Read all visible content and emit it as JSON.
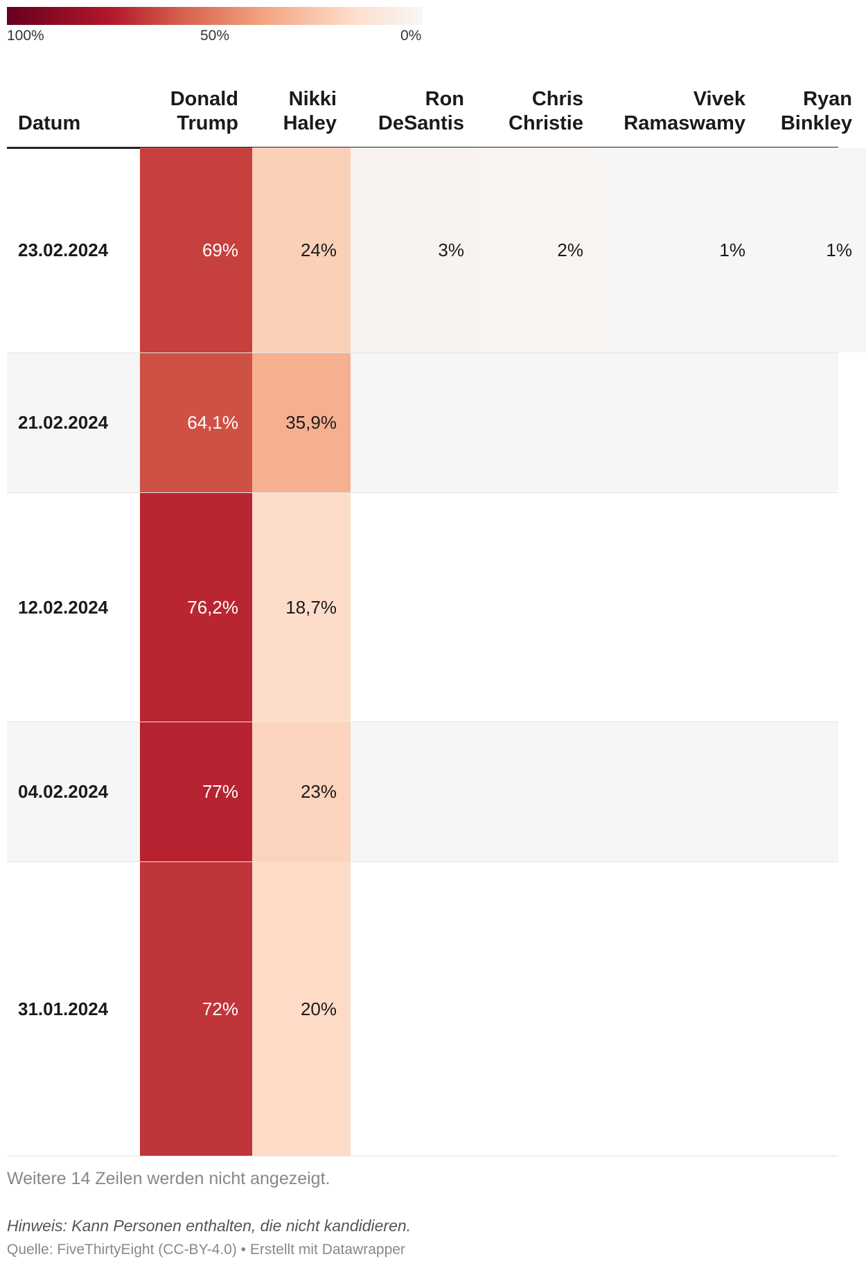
{
  "legend": {
    "ticks": [
      "100%",
      "50%",
      "0%"
    ],
    "tick_values": [
      100,
      50,
      0
    ]
  },
  "chart_data": {
    "type": "table",
    "title": "",
    "header_date": "Datum",
    "columns": [
      {
        "line1": "Donald",
        "line2": "Trump"
      },
      {
        "line1": "Nikki",
        "line2": "Haley"
      },
      {
        "line1": "Ron",
        "line2": "DeSantis"
      },
      {
        "line1": "Chris",
        "line2": "Christie"
      },
      {
        "line1": "Vivek",
        "line2": "Ramaswamy"
      },
      {
        "line1": "Ryan",
        "line2": "Binkley"
      }
    ],
    "rows": [
      {
        "date": "23.02.2024",
        "labels": [
          "69%",
          "24%",
          "3%",
          "2%",
          "1%",
          "1%"
        ],
        "values": [
          69,
          24,
          3,
          2,
          1,
          1
        ]
      },
      {
        "date": "21.02.2024",
        "labels": [
          "64,1%",
          "35,9%",
          "",
          "",
          "",
          ""
        ],
        "values": [
          64.1,
          35.9,
          null,
          null,
          null,
          null
        ]
      },
      {
        "date": "12.02.2024",
        "labels": [
          "76,2%",
          "18,7%",
          "",
          "",
          "",
          ""
        ],
        "values": [
          76.2,
          18.7,
          null,
          null,
          null,
          null
        ]
      },
      {
        "date": "04.02.2024",
        "labels": [
          "77%",
          "23%",
          "",
          "",
          "",
          ""
        ],
        "values": [
          77,
          23,
          null,
          null,
          null,
          null
        ]
      },
      {
        "date": "31.01.2024",
        "labels": [
          "72%",
          "20%",
          "",
          "",
          "",
          ""
        ],
        "values": [
          72,
          20,
          null,
          null,
          null,
          null
        ]
      }
    ],
    "color_scale": {
      "min": 0,
      "max": 100,
      "colors": [
        "#f7f7f7",
        "#fddbc7",
        "#f4a582",
        "#d6604d",
        "#b2182b",
        "#67001f"
      ]
    }
  },
  "footer": {
    "more_rows": "Weitere 14 Zeilen werden nicht angezeigt.",
    "note": "Hinweis: Kann Personen enthalten, die nicht kandidieren.",
    "source": "Quelle: FiveThirtyEight (CC-BY-4.0) • Erstellt mit Datawrapper"
  }
}
